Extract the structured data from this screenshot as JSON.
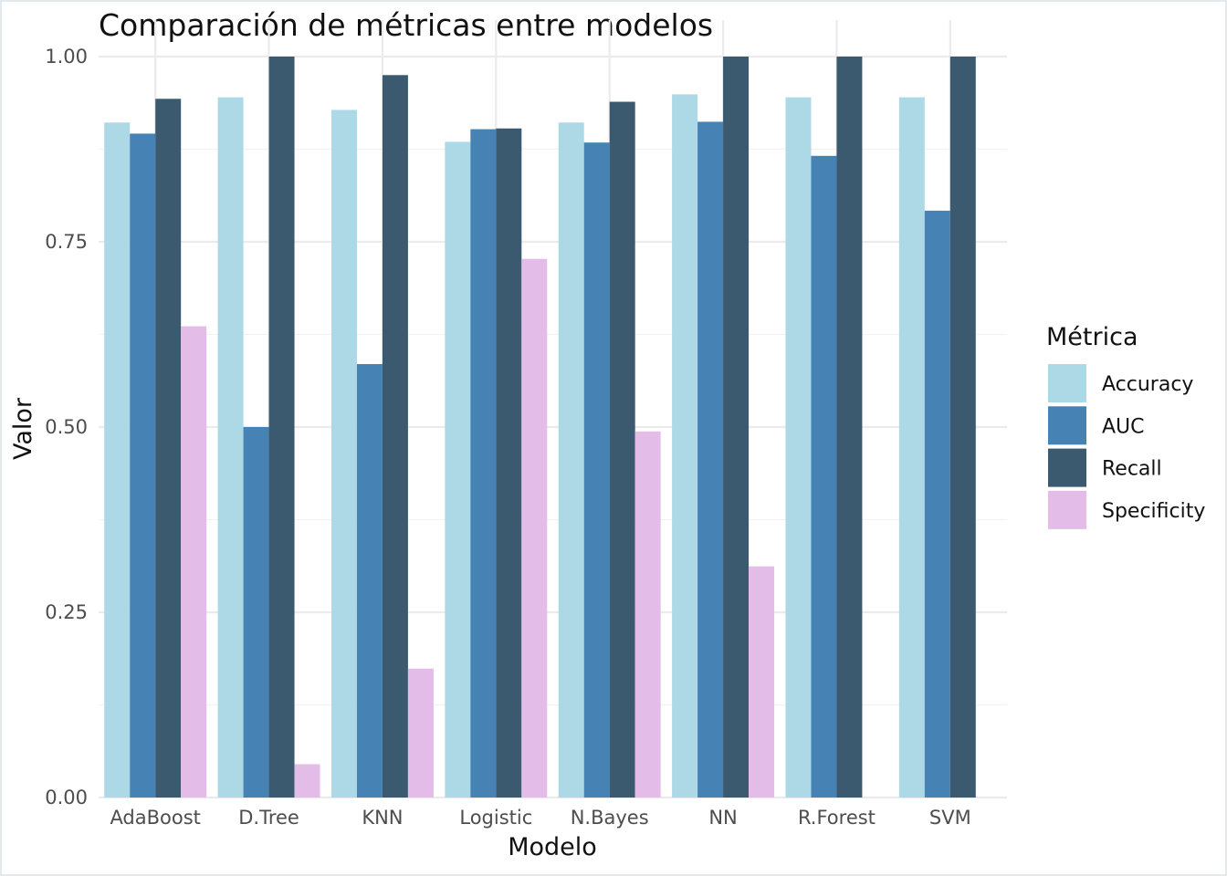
{
  "chart_data": {
    "type": "bar",
    "title": "Comparación de métricas entre modelos",
    "xlabel": "Modelo",
    "ylabel": "Valor",
    "ylim": [
      0,
      1
    ],
    "yticks": [
      0.0,
      0.25,
      0.5,
      0.75,
      1.0
    ],
    "ytick_labels": [
      "0.00",
      "0.25",
      "0.50",
      "0.75",
      "1.00"
    ],
    "grid": true,
    "legend_position": "right",
    "legend_title": "Métrica",
    "categories": [
      "AdaBoost",
      "D.Tree",
      "KNN",
      "Logistic",
      "N.Bayes",
      "NN",
      "R.Forest",
      "SVM"
    ],
    "series": [
      {
        "name": "Accuracy",
        "color": "#add8e6",
        "values": [
          0.911,
          0.945,
          0.928,
          0.885,
          0.911,
          0.949,
          0.945,
          0.945
        ]
      },
      {
        "name": "AUC",
        "color": "#4682b4",
        "values": [
          0.896,
          0.5,
          0.585,
          0.902,
          0.884,
          0.912,
          0.866,
          0.792
        ]
      },
      {
        "name": "Recall",
        "color": "#3b5a70",
        "values": [
          0.943,
          1.0,
          0.975,
          0.903,
          0.939,
          1.0,
          1.0,
          1.0
        ]
      },
      {
        "name": "Specificity",
        "color": "#e3bde8",
        "values": [
          0.636,
          0.045,
          0.174,
          0.727,
          0.494,
          0.312,
          0.0,
          0.0
        ]
      }
    ]
  }
}
